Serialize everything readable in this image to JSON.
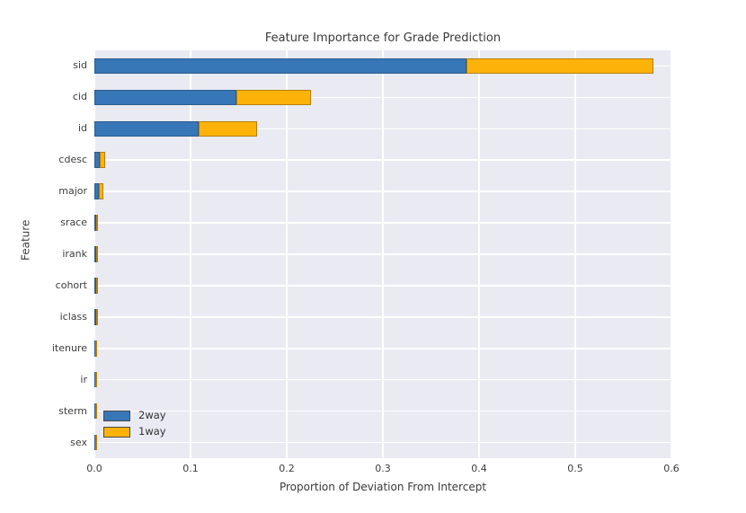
{
  "chart_data": {
    "type": "bar",
    "orientation": "horizontal",
    "stacked": true,
    "title": "Feature Importance for Grade Prediction",
    "xlabel": "Proportion of Deviation From Intercept",
    "ylabel": "Feature",
    "categories": [
      "sid",
      "cid",
      "id",
      "cdesc",
      "major",
      "srace",
      "irank",
      "cohort",
      "iclass",
      "itenure",
      "ir",
      "sterm",
      "sex"
    ],
    "series": [
      {
        "name": "2way",
        "color": "#3776b7",
        "edge_color": "#2a5d8e",
        "values": [
          0.387,
          0.148,
          0.108,
          0.006,
          0.005,
          0.002,
          0.002,
          0.002,
          0.002,
          0.001,
          0.001,
          0.001,
          0.001
        ]
      },
      {
        "name": "1way",
        "color": "#fcb208",
        "edge_color": "#b5800a",
        "values": [
          0.194,
          0.077,
          0.061,
          0.005,
          0.004,
          0.001,
          0.001,
          0.001,
          0.001,
          0.002,
          0.001,
          0.001,
          0.001
        ]
      }
    ],
    "xlim": [
      0,
      0.6
    ],
    "xticks": [
      0.0,
      0.1,
      0.2,
      0.3,
      0.4,
      0.5,
      0.6
    ],
    "xtick_labels": [
      "0.0",
      "0.1",
      "0.2",
      "0.3",
      "0.4",
      "0.5",
      "0.6"
    ],
    "grid": true,
    "grid_color": "#ffffff",
    "plot_bg": "#eaeaf2",
    "legend_position": "lower left"
  }
}
